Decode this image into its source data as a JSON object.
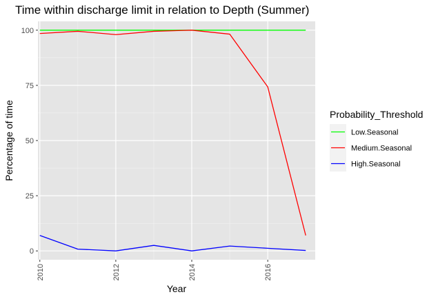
{
  "chart_data": {
    "type": "line",
    "title": "Time within discharge limit in relation to Depth (Summer)",
    "xlabel": "Year",
    "ylabel": "Percentage of time",
    "xlim": [
      2009.95,
      2017.25
    ],
    "ylim": [
      -4,
      104
    ],
    "x_ticks": [
      2010,
      2012,
      2014,
      2016
    ],
    "y_ticks": [
      0,
      25,
      50,
      75,
      100
    ],
    "x": [
      2010,
      2011,
      2012,
      2013,
      2014,
      2015,
      2016,
      2017
    ],
    "grid": true,
    "legend": {
      "title": "Probability_Threshold",
      "position": "right"
    },
    "series": [
      {
        "name": "Low.Seasonal",
        "color": "#00FF00",
        "values": [
          100,
          100,
          100,
          100,
          100,
          100,
          100,
          100
        ]
      },
      {
        "name": "Medium.Seasonal",
        "color": "#FF0000",
        "values": [
          98.5,
          99.5,
          98,
          99.5,
          100,
          98.2,
          74.3,
          7
        ]
      },
      {
        "name": "High.Seasonal",
        "color": "#0000FF",
        "values": [
          7,
          0.8,
          0,
          2.5,
          0,
          2.2,
          1.2,
          0.2
        ]
      }
    ]
  }
}
